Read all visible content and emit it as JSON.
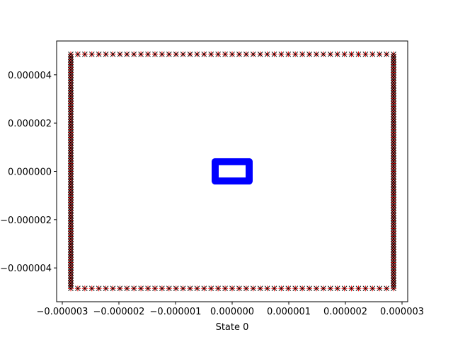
{
  "chart_data": {
    "type": "scatter",
    "title": "",
    "xlabel": "State 0",
    "ylabel": "",
    "xlim": [
      -3.1e-06,
      3.1e-06
    ],
    "ylim": [
      -5.4e-06,
      5.4e-06
    ],
    "grid": false,
    "x_ticks": [
      {
        "value": -3e-06,
        "label": "−0.000003"
      },
      {
        "value": -2e-06,
        "label": "−0.000002"
      },
      {
        "value": -1e-06,
        "label": "−0.000001"
      },
      {
        "value": 0,
        "label": "0.000000"
      },
      {
        "value": 1e-06,
        "label": "0.000001"
      },
      {
        "value": 2e-06,
        "label": "0.000002"
      },
      {
        "value": 3e-06,
        "label": "0.000003"
      }
    ],
    "y_ticks": [
      {
        "value": 4e-06,
        "label": "0.000004"
      },
      {
        "value": 2e-06,
        "label": "0.000002"
      },
      {
        "value": 0,
        "label": "0.000000"
      },
      {
        "value": -2e-06,
        "label": "−0.000002"
      },
      {
        "value": -4e-06,
        "label": "−0.000004"
      }
    ],
    "series": [
      {
        "shape": "rectangle-outline",
        "marker": "+",
        "color": "#ff0000",
        "x_range": [
          -2.85e-06,
          2.85e-06
        ],
        "y_range": [
          -4.85e-06,
          4.85e-06
        ]
      },
      {
        "shape": "rectangle-outline",
        "marker": "x",
        "color": "#000000",
        "x_range": [
          -2.85e-06,
          2.85e-06
        ],
        "y_range": [
          -4.85e-06,
          4.85e-06
        ]
      },
      {
        "shape": "rectangle-outline",
        "marker": "o",
        "color": "#0000ff",
        "x_range": [
          -3e-07,
          3e-07
        ],
        "y_range": [
          -4e-07,
          4e-07
        ]
      }
    ]
  }
}
